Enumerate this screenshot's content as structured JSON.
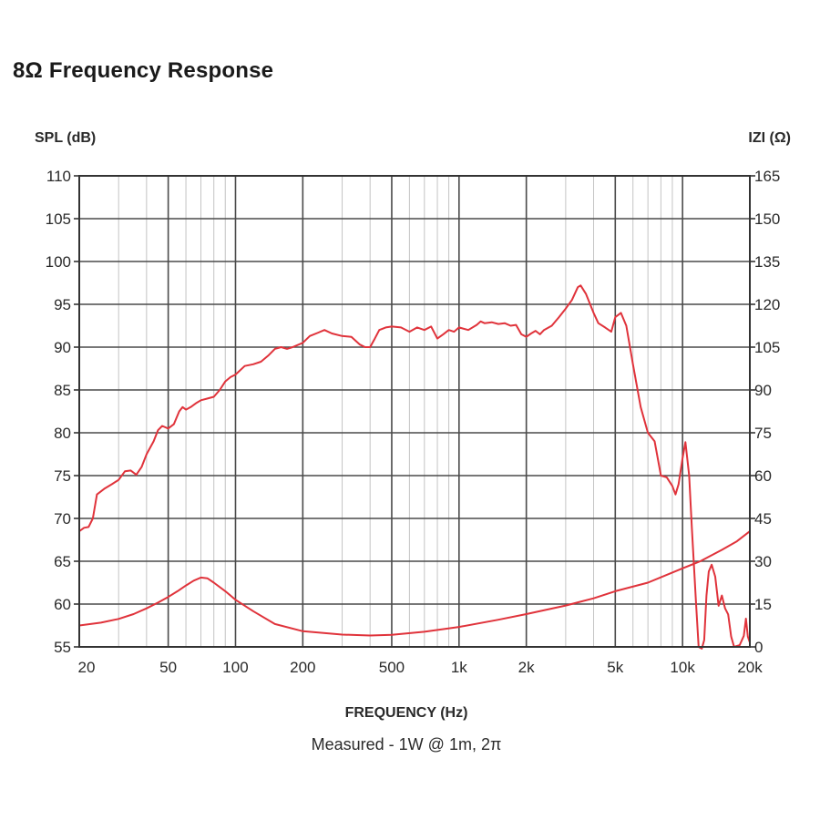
{
  "page": {
    "title": "8Ω Frequency Response"
  },
  "chart_data": {
    "type": "line",
    "ylabel_left": "SPL (dB)",
    "ylabel_right": "IZI (Ω)",
    "xlabel": "FREQUENCY (Hz)",
    "caption": "Measured - 1W @ 1m, 2π",
    "x_scale": "log",
    "xlim": [
      20,
      20000
    ],
    "ylim_left": [
      55,
      110
    ],
    "ylim_right": [
      0,
      165
    ],
    "grid": true,
    "x_ticks": [
      {
        "value": 20,
        "label": "20"
      },
      {
        "value": 50,
        "label": "50"
      },
      {
        "value": 100,
        "label": "100"
      },
      {
        "value": 200,
        "label": "200"
      },
      {
        "value": 500,
        "label": "500"
      },
      {
        "value": 1000,
        "label": "1k"
      },
      {
        "value": 2000,
        "label": "2k"
      },
      {
        "value": 5000,
        "label": "5k"
      },
      {
        "value": 10000,
        "label": "10k"
      },
      {
        "value": 20000,
        "label": "20k"
      }
    ],
    "y_ticks_left": [
      110,
      105,
      100,
      95,
      90,
      85,
      80,
      75,
      70,
      65,
      60,
      55
    ],
    "y_ticks_right": [
      165,
      150,
      135,
      120,
      105,
      90,
      75,
      60,
      45,
      30,
      15,
      0
    ],
    "series": [
      {
        "key": "spl",
        "axis": "left",
        "color": "#e0333b",
        "points": [
          [
            20,
            68.5
          ],
          [
            21,
            68.9
          ],
          [
            22,
            69.0
          ],
          [
            23,
            70.0
          ],
          [
            24,
            72.8
          ],
          [
            26,
            73.5
          ],
          [
            28,
            74.0
          ],
          [
            30,
            74.5
          ],
          [
            32,
            75.5
          ],
          [
            34,
            75.6
          ],
          [
            36,
            75.1
          ],
          [
            38,
            76.0
          ],
          [
            40,
            77.5
          ],
          [
            43,
            79.0
          ],
          [
            45,
            80.3
          ],
          [
            47,
            80.8
          ],
          [
            50,
            80.5
          ],
          [
            53,
            81.0
          ],
          [
            56,
            82.5
          ],
          [
            58,
            83.0
          ],
          [
            60,
            82.7
          ],
          [
            63,
            83.0
          ],
          [
            67,
            83.5
          ],
          [
            70,
            83.8
          ],
          [
            75,
            84.0
          ],
          [
            80,
            84.2
          ],
          [
            85,
            85.0
          ],
          [
            90,
            86.0
          ],
          [
            95,
            86.5
          ],
          [
            100,
            86.8
          ],
          [
            110,
            87.8
          ],
          [
            120,
            88.0
          ],
          [
            130,
            88.3
          ],
          [
            140,
            89.0
          ],
          [
            150,
            89.8
          ],
          [
            160,
            90.0
          ],
          [
            170,
            89.8
          ],
          [
            180,
            90.0
          ],
          [
            200,
            90.5
          ],
          [
            215,
            91.3
          ],
          [
            235,
            91.7
          ],
          [
            250,
            92.0
          ],
          [
            270,
            91.6
          ],
          [
            300,
            91.3
          ],
          [
            330,
            91.2
          ],
          [
            360,
            90.3
          ],
          [
            380,
            90.0
          ],
          [
            400,
            90.0
          ],
          [
            420,
            91.0
          ],
          [
            440,
            92.0
          ],
          [
            470,
            92.3
          ],
          [
            500,
            92.4
          ],
          [
            550,
            92.3
          ],
          [
            600,
            91.8
          ],
          [
            650,
            92.3
          ],
          [
            700,
            92.0
          ],
          [
            750,
            92.4
          ],
          [
            800,
            91.0
          ],
          [
            850,
            91.5
          ],
          [
            900,
            92.0
          ],
          [
            950,
            91.8
          ],
          [
            1000,
            92.3
          ],
          [
            1100,
            92.0
          ],
          [
            1200,
            92.6
          ],
          [
            1250,
            93.0
          ],
          [
            1300,
            92.8
          ],
          [
            1400,
            92.9
          ],
          [
            1500,
            92.7
          ],
          [
            1600,
            92.8
          ],
          [
            1700,
            92.5
          ],
          [
            1800,
            92.6
          ],
          [
            1900,
            91.5
          ],
          [
            2000,
            91.2
          ],
          [
            2100,
            91.6
          ],
          [
            2200,
            91.9
          ],
          [
            2300,
            91.5
          ],
          [
            2400,
            92.0
          ],
          [
            2600,
            92.5
          ],
          [
            2800,
            93.5
          ],
          [
            3000,
            94.5
          ],
          [
            3200,
            95.5
          ],
          [
            3400,
            97.0
          ],
          [
            3500,
            97.2
          ],
          [
            3700,
            96.2
          ],
          [
            4000,
            94.0
          ],
          [
            4200,
            92.8
          ],
          [
            4500,
            92.3
          ],
          [
            4800,
            91.8
          ],
          [
            5000,
            93.5
          ],
          [
            5300,
            94.0
          ],
          [
            5600,
            92.5
          ],
          [
            6000,
            88.0
          ],
          [
            6500,
            83.0
          ],
          [
            7000,
            80.0
          ],
          [
            7500,
            79.0
          ],
          [
            8000,
            75.0
          ],
          [
            8500,
            74.8
          ],
          [
            9000,
            73.8
          ],
          [
            9300,
            72.8
          ],
          [
            9600,
            74.0
          ],
          [
            10000,
            77.0
          ],
          [
            10300,
            78.9
          ],
          [
            10700,
            75.0
          ],
          [
            11000,
            69.0
          ],
          [
            11500,
            60.0
          ],
          [
            11800,
            55.0
          ],
          [
            12200,
            54.8
          ],
          [
            12500,
            55.8
          ],
          [
            12800,
            61.0
          ],
          [
            13100,
            63.8
          ],
          [
            13500,
            64.6
          ],
          [
            14000,
            63.2
          ],
          [
            14500,
            59.8
          ],
          [
            15000,
            61.0
          ],
          [
            15500,
            59.5
          ],
          [
            16000,
            58.8
          ],
          [
            16500,
            56.2
          ],
          [
            17000,
            55.0
          ],
          [
            18000,
            55.2
          ],
          [
            18800,
            56.3
          ],
          [
            19200,
            58.3
          ],
          [
            19600,
            56.2
          ],
          [
            20000,
            55.5
          ]
        ]
      },
      {
        "key": "impedance",
        "axis": "right",
        "color": "#e0333b",
        "points": [
          [
            20,
            7.5
          ],
          [
            25,
            8.5
          ],
          [
            30,
            9.8
          ],
          [
            35,
            11.5
          ],
          [
            40,
            13.5
          ],
          [
            45,
            15.5
          ],
          [
            50,
            17.5
          ],
          [
            55,
            19.5
          ],
          [
            60,
            21.5
          ],
          [
            65,
            23.2
          ],
          [
            70,
            24.3
          ],
          [
            75,
            24.0
          ],
          [
            80,
            22.5
          ],
          [
            90,
            19.5
          ],
          [
            100,
            16.5
          ],
          [
            120,
            12.5
          ],
          [
            150,
            8.0
          ],
          [
            200,
            5.5
          ],
          [
            300,
            4.3
          ],
          [
            400,
            4.0
          ],
          [
            500,
            4.2
          ],
          [
            700,
            5.3
          ],
          [
            1000,
            7.0
          ],
          [
            1500,
            9.5
          ],
          [
            2000,
            11.5
          ],
          [
            3000,
            14.5
          ],
          [
            4000,
            17.0
          ],
          [
            5000,
            19.5
          ],
          [
            7000,
            22.5
          ],
          [
            10000,
            27.5
          ],
          [
            12000,
            30.0
          ],
          [
            15000,
            34.0
          ],
          [
            17500,
            37.0
          ],
          [
            20000,
            40.5
          ]
        ]
      }
    ]
  }
}
